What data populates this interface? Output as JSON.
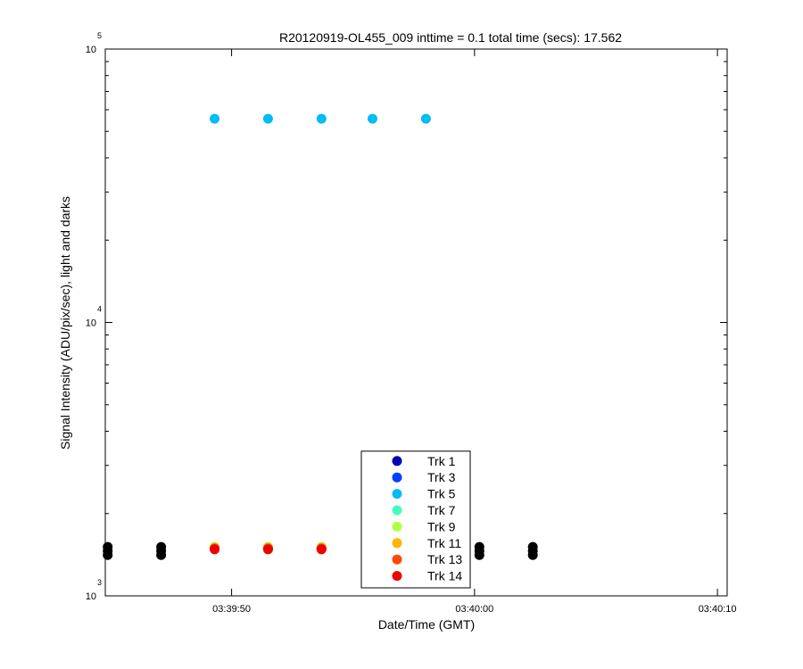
{
  "chart_data": {
    "type": "scatter",
    "title": "R20120919-OL455_009 inttime = 0.1 total time (secs): 17.562",
    "xlabel": "Date/Time (GMT)",
    "ylabel": "Signal Intensity (ADU/pix/sec), light and darks",
    "x": [
      "03:39:44.9",
      "03:39:47.1",
      "03:39:49.3",
      "03:39:51.5",
      "03:39:53.7",
      "03:39:55.8",
      "03:39:58.0",
      "03:40:00.2",
      "03:40:02.4"
    ],
    "xlim": [
      "03:39:44.8",
      "03:40:10.4"
    ],
    "xticks": [
      "03:39:50",
      "03:40:00",
      "03:40:10"
    ],
    "ylim": [
      1000,
      100000
    ],
    "log_y": true,
    "yticks": [
      {
        "value": 1000,
        "label": "10",
        "exponent": "3"
      },
      {
        "value": 10000,
        "label": "10",
        "exponent": "4"
      },
      {
        "value": 100000,
        "label": "10",
        "exponent": "5"
      }
    ],
    "yminorticks": [
      2000,
      3000,
      4000,
      5000,
      6000,
      7000,
      8000,
      9000,
      20000,
      30000,
      40000,
      50000,
      60000,
      70000,
      80000,
      90000
    ],
    "legend_position": "lower center",
    "series": [
      {
        "color": "#000000",
        "values": [
          1510,
          1510,
          null,
          null,
          null,
          null,
          null,
          1510,
          1510
        ]
      },
      {
        "color": "#000000",
        "values": [
          1460,
          1460,
          null,
          null,
          null,
          null,
          null,
          1460,
          1460
        ]
      },
      {
        "color": "#000000",
        "values": [
          1410,
          1410,
          null,
          null,
          null,
          null,
          null,
          1410,
          1410
        ]
      },
      {
        "name": "Trk 1",
        "color": "#0000b4",
        "values": [
          null,
          null,
          1490,
          1490,
          1490,
          null,
          null,
          null,
          null
        ]
      },
      {
        "name": "Trk 3",
        "color": "#0040ff",
        "values": [
          null,
          null,
          1490,
          1490,
          1490,
          null,
          null,
          null,
          null
        ]
      },
      {
        "name": "Trk 5",
        "color": "#00bcf4",
        "values": [
          null,
          null,
          55600,
          55600,
          55600,
          55600,
          55600,
          null,
          null
        ]
      },
      {
        "name": "Trk 7",
        "color": "#40ffbf",
        "values": [
          null,
          null,
          1510,
          1510,
          1510,
          null,
          null,
          null,
          null
        ]
      },
      {
        "name": "Trk 9",
        "color": "#b0ff40",
        "values": [
          null,
          null,
          1510,
          1510,
          1510,
          null,
          null,
          null,
          null
        ]
      },
      {
        "name": "Trk 11",
        "color": "#ffb400",
        "values": [
          null,
          null,
          1500,
          1500,
          1500,
          null,
          null,
          null,
          null
        ]
      },
      {
        "name": "Trk 13",
        "color": "#ff4a00",
        "values": [
          null,
          null,
          1490,
          1490,
          1490,
          null,
          null,
          null,
          null
        ]
      },
      {
        "name": "Trk 14",
        "color": "#f00000",
        "values": [
          null,
          null,
          1480,
          1480,
          1480,
          null,
          null,
          null,
          null
        ]
      }
    ]
  }
}
